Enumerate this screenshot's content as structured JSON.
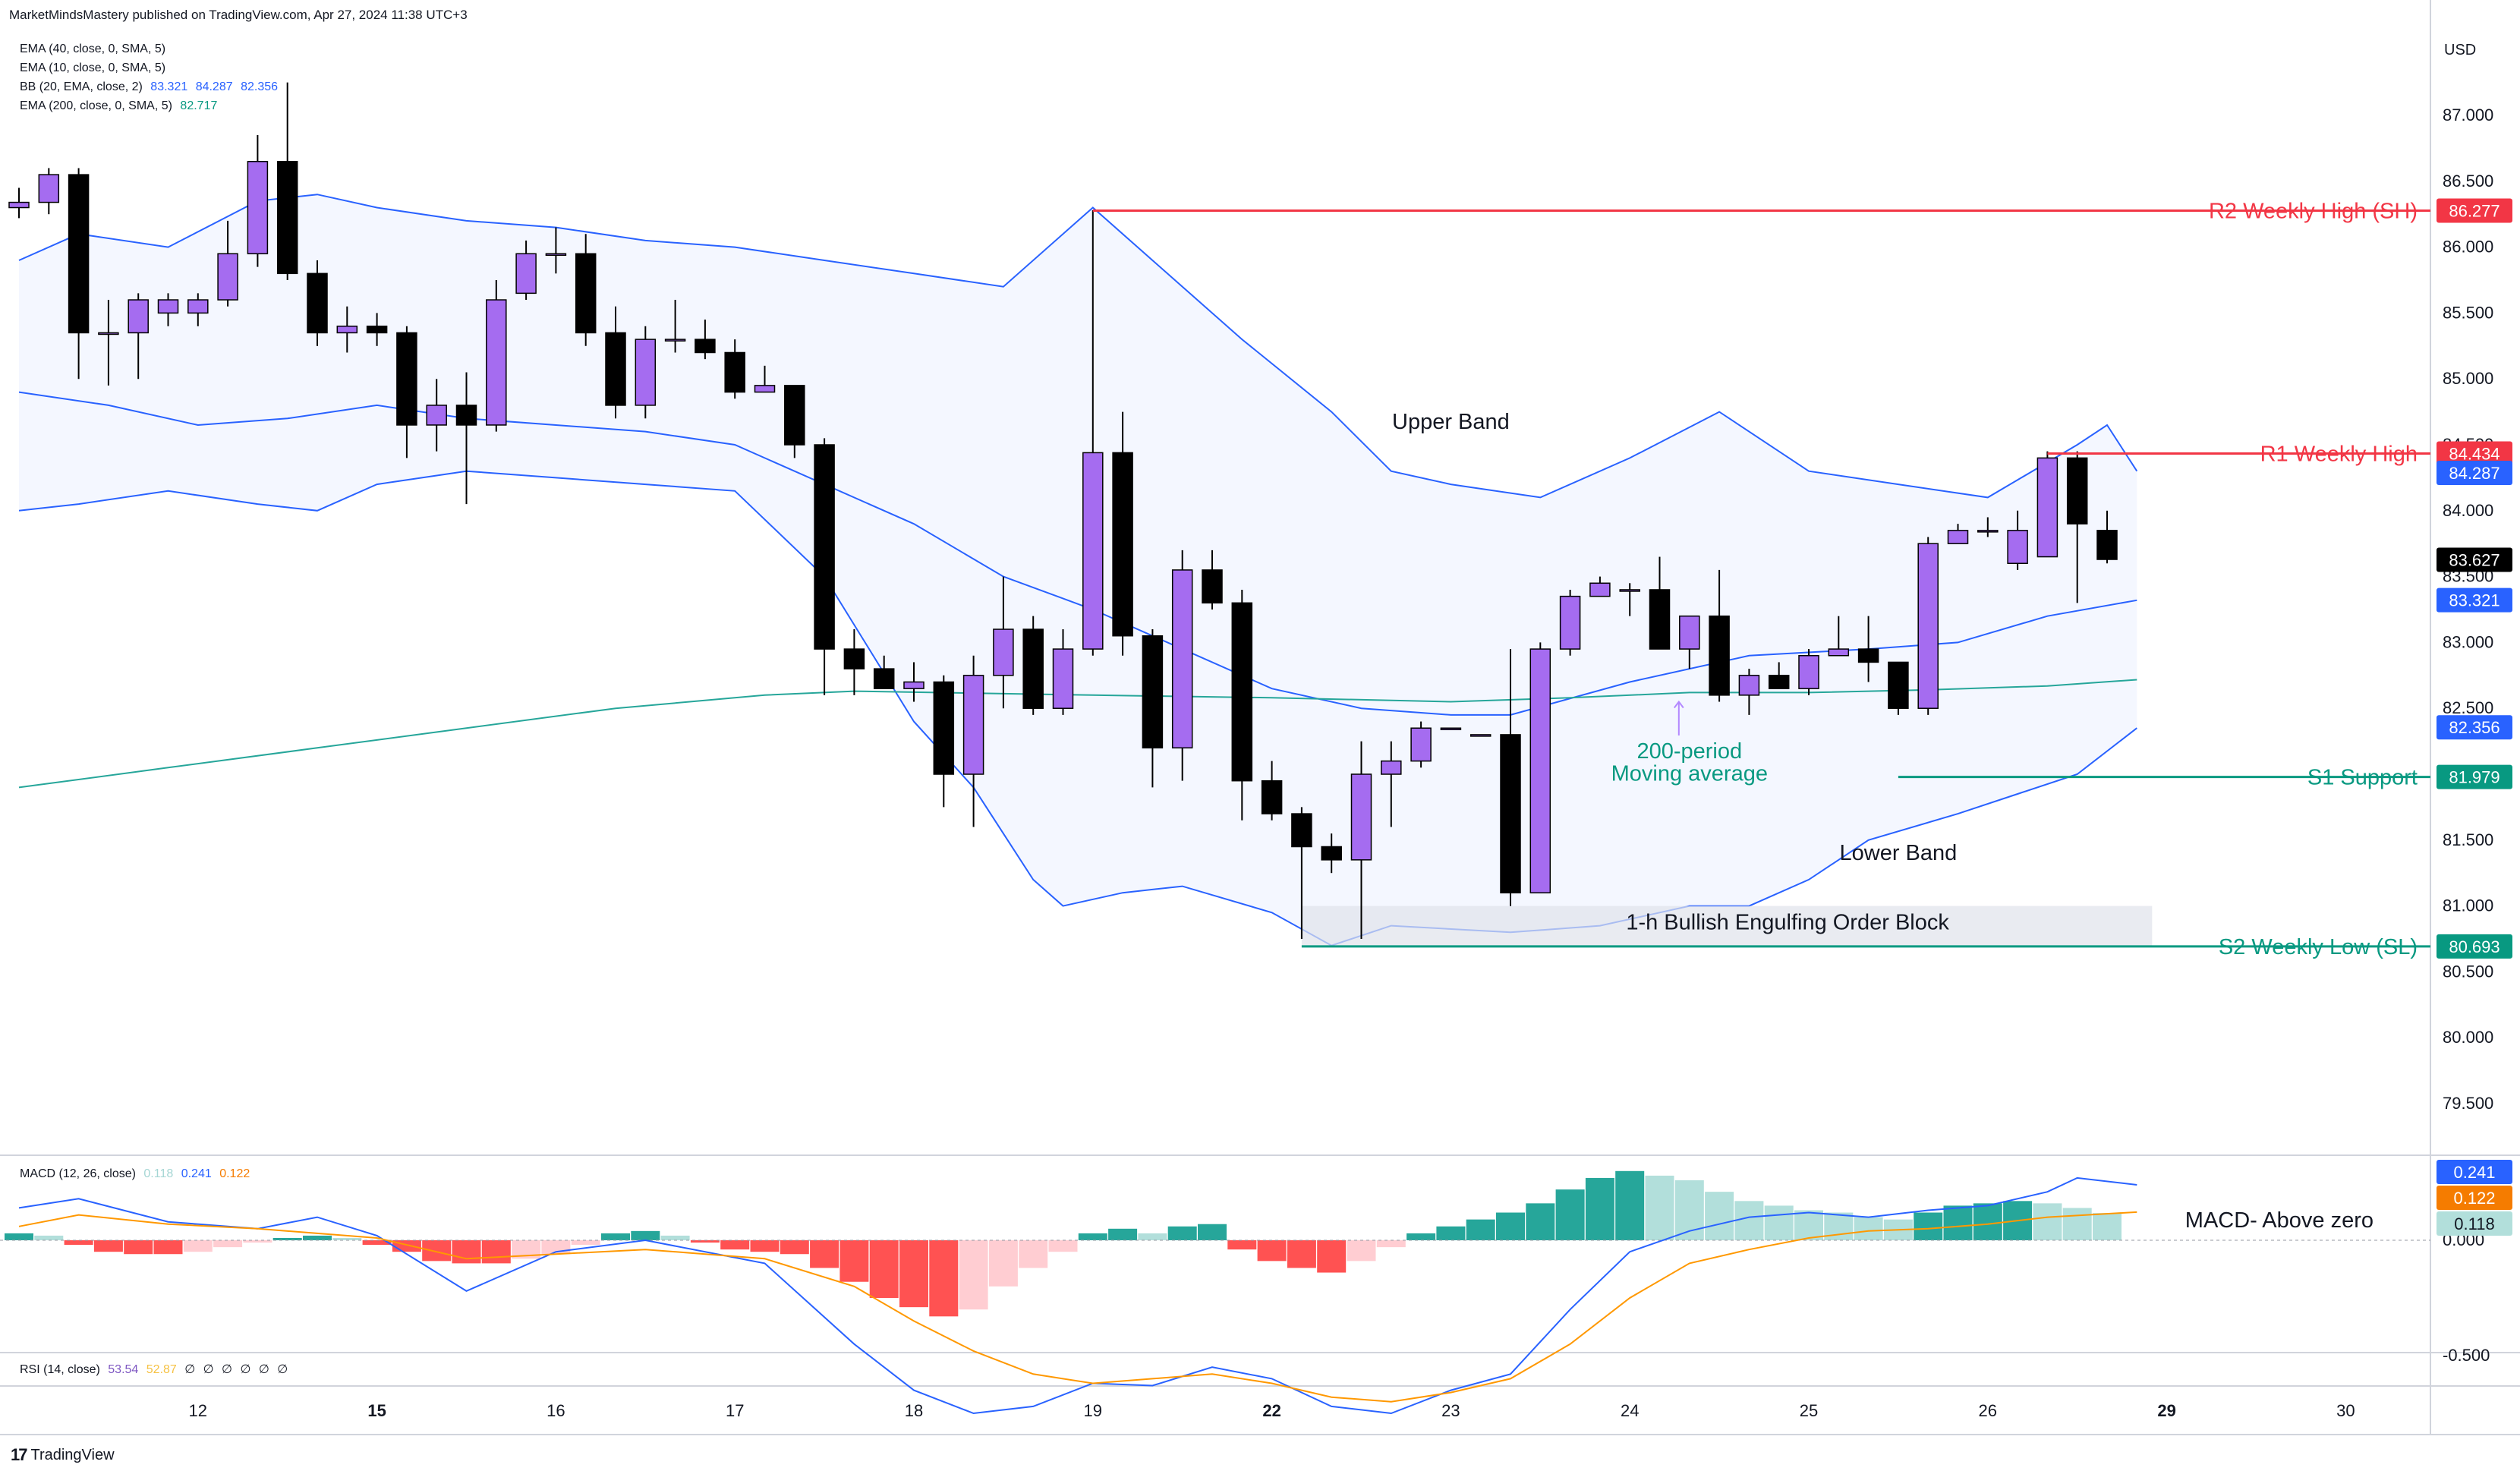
{
  "header": {
    "published": "MarketMindsMastery published on TradingView.com, Apr 27, 2024 11:38 UTC+3"
  },
  "legend": [
    {
      "label": "EMA (40, close, 0, SMA, 5)",
      "values": []
    },
    {
      "label": "EMA (10, close, 0, SMA, 5)",
      "values": []
    },
    {
      "label": "BB (20, EMA, close, 2)",
      "values": [
        "83.321",
        "84.287",
        "82.356"
      ],
      "color": "#2962ff"
    },
    {
      "label": "EMA (200, close, 0, SMA, 5)",
      "values": [
        "82.717"
      ],
      "color": "#089981"
    }
  ],
  "macd_legend": {
    "label": "MACD (12, 26, close)",
    "values": [
      "0.118",
      "0.241",
      "0.122"
    ],
    "colors": [
      "#a5d6d4",
      "#2962ff",
      "#f57c00"
    ]
  },
  "rsi_legend": {
    "label": "RSI (14, close)",
    "values": [
      "53.54",
      "52.87",
      "∅",
      "∅",
      "∅",
      "∅",
      "∅",
      "∅"
    ],
    "colors": [
      "#7e57c2",
      "#f6c244",
      "#131722",
      "#131722",
      "#131722",
      "#131722",
      "#131722",
      "#131722"
    ]
  },
  "currency": "USD",
  "footer": {
    "brand": "TradingView",
    "logo": "tv-logo-icon"
  },
  "colors": {
    "bull": "#a56cf0",
    "bear": "#000000",
    "bb": "#2962ff",
    "ema200": "#26a69a",
    "resistance": "#f23645",
    "support": "#089981",
    "macd_pos_strong": "#26a69a",
    "macd_pos_weak": "#b2dfdb",
    "macd_neg_strong": "#ff5252",
    "macd_neg_weak": "#ffcdd2",
    "macd_line": "#2962ff",
    "signal_line": "#ff9800"
  },
  "chart_data": {
    "type": "candlestick",
    "y_axis": {
      "range": [
        79.0,
        87.3
      ],
      "ticks": [
        "87.000",
        "86.500",
        "86.000",
        "85.500",
        "85.000",
        "84.500",
        "84.000",
        "83.500",
        "83.000",
        "82.500",
        "82.000",
        "81.500",
        "81.000",
        "80.500",
        "80.000",
        "79.500"
      ]
    },
    "x_axis": {
      "ticks": [
        {
          "label": "12",
          "bar": 6
        },
        {
          "label": "15",
          "bar": 12
        },
        {
          "label": "16",
          "bar": 18
        },
        {
          "label": "17",
          "bar": 24
        },
        {
          "label": "18",
          "bar": 30
        },
        {
          "label": "19",
          "bar": 36
        },
        {
          "label": "22",
          "bar": 42
        },
        {
          "label": "23",
          "bar": 48
        },
        {
          "label": "24",
          "bar": 54
        },
        {
          "label": "25",
          "bar": 60
        },
        {
          "label": "26",
          "bar": 66
        },
        {
          "label": "29",
          "bar": 72
        },
        {
          "label": "30",
          "bar": 78
        }
      ]
    },
    "bold_ticks": [
      "15",
      "22",
      "29"
    ],
    "candles": [
      [
        86.3,
        86.45,
        86.22,
        86.34
      ],
      [
        86.34,
        86.6,
        86.25,
        86.55
      ],
      [
        86.55,
        86.6,
        85.0,
        85.35
      ],
      [
        85.35,
        85.6,
        84.95,
        85.35
      ],
      [
        85.35,
        85.65,
        85.0,
        85.6
      ],
      [
        85.5,
        85.65,
        85.4,
        85.6
      ],
      [
        85.5,
        85.65,
        85.4,
        85.6
      ],
      [
        85.6,
        86.2,
        85.55,
        85.95
      ],
      [
        85.95,
        86.85,
        85.85,
        86.65
      ],
      [
        86.65,
        87.25,
        85.75,
        85.8
      ],
      [
        85.8,
        85.9,
        85.25,
        85.35
      ],
      [
        85.35,
        85.55,
        85.2,
        85.4
      ],
      [
        85.4,
        85.5,
        85.25,
        85.35
      ],
      [
        85.35,
        85.4,
        84.4,
        84.65
      ],
      [
        84.65,
        85.0,
        84.45,
        84.8
      ],
      [
        84.8,
        85.05,
        84.05,
        84.65
      ],
      [
        84.65,
        85.75,
        84.6,
        85.6
      ],
      [
        85.65,
        86.05,
        85.6,
        85.95
      ],
      [
        85.95,
        86.15,
        85.8,
        85.95
      ],
      [
        85.95,
        86.1,
        85.25,
        85.35
      ],
      [
        85.35,
        85.55,
        84.7,
        84.8
      ],
      [
        84.8,
        85.4,
        84.7,
        85.3
      ],
      [
        85.3,
        85.6,
        85.2,
        85.3
      ],
      [
        85.3,
        85.45,
        85.15,
        85.2
      ],
      [
        85.2,
        85.3,
        84.85,
        84.9
      ],
      [
        84.9,
        85.1,
        84.9,
        84.95
      ],
      [
        84.95,
        84.95,
        84.4,
        84.5
      ],
      [
        84.5,
        84.55,
        82.6,
        82.95
      ],
      [
        82.95,
        83.1,
        82.6,
        82.8
      ],
      [
        82.8,
        82.9,
        82.7,
        82.65
      ],
      [
        82.65,
        82.85,
        82.55,
        82.7
      ],
      [
        82.7,
        82.75,
        81.75,
        82.0
      ],
      [
        82.0,
        82.9,
        81.6,
        82.75
      ],
      [
        82.75,
        83.5,
        82.5,
        83.1
      ],
      [
        83.1,
        83.2,
        82.45,
        82.5
      ],
      [
        82.5,
        83.1,
        82.45,
        82.95
      ],
      [
        82.95,
        86.28,
        82.9,
        84.44
      ],
      [
        84.44,
        84.75,
        82.9,
        83.05
      ],
      [
        83.05,
        83.1,
        81.9,
        82.2
      ],
      [
        82.2,
        83.7,
        81.95,
        83.55
      ],
      [
        83.55,
        83.7,
        83.25,
        83.3
      ],
      [
        83.3,
        83.4,
        81.65,
        81.95
      ],
      [
        81.95,
        82.1,
        81.65,
        81.7
      ],
      [
        81.7,
        81.75,
        80.75,
        81.45
      ],
      [
        81.45,
        81.55,
        81.25,
        81.35
      ],
      [
        81.35,
        82.25,
        80.75,
        82.0
      ],
      [
        82.0,
        82.25,
        81.6,
        82.1
      ],
      [
        82.1,
        82.4,
        82.05,
        82.35
      ],
      [
        82.35,
        82.35,
        82.35,
        82.35
      ],
      [
        82.3,
        82.3,
        82.3,
        82.3
      ],
      [
        82.3,
        82.95,
        81.0,
        81.1
      ],
      [
        81.1,
        83.0,
        81.1,
        82.95
      ],
      [
        82.95,
        83.4,
        82.9,
        83.35
      ],
      [
        83.35,
        83.5,
        83.4,
        83.45
      ],
      [
        83.4,
        83.45,
        83.2,
        83.4
      ],
      [
        83.4,
        83.65,
        82.95,
        82.95
      ],
      [
        82.95,
        83.2,
        82.8,
        83.2
      ],
      [
        83.2,
        83.55,
        82.55,
        82.6
      ],
      [
        82.6,
        82.8,
        82.45,
        82.75
      ],
      [
        82.75,
        82.85,
        82.65,
        82.65
      ],
      [
        82.65,
        82.95,
        82.6,
        82.9
      ],
      [
        82.9,
        83.2,
        82.9,
        82.95
      ],
      [
        82.95,
        83.2,
        82.7,
        82.85
      ],
      [
        82.85,
        82.85,
        82.45,
        82.5
      ],
      [
        82.5,
        83.8,
        82.45,
        83.75
      ],
      [
        83.75,
        83.9,
        83.8,
        83.85
      ],
      [
        83.85,
        83.95,
        83.8,
        83.85
      ],
      [
        83.6,
        84.0,
        83.55,
        83.85
      ],
      [
        83.65,
        84.45,
        83.65,
        84.4
      ],
      [
        84.4,
        84.45,
        83.3,
        83.9
      ],
      [
        83.85,
        84.0,
        83.6,
        83.63
      ]
    ],
    "candle_format": "[open, high, low, close]",
    "bb_upper": [
      [
        0,
        85.9
      ],
      [
        2,
        86.1
      ],
      [
        5,
        86.0
      ],
      [
        8,
        86.35
      ],
      [
        10,
        86.4
      ],
      [
        12,
        86.3
      ],
      [
        15,
        86.2
      ],
      [
        18,
        86.15
      ],
      [
        21,
        86.05
      ],
      [
        24,
        86.0
      ],
      [
        27,
        85.9
      ],
      [
        30,
        85.8
      ],
      [
        33,
        85.7
      ],
      [
        36,
        86.3
      ],
      [
        38,
        85.9
      ],
      [
        41,
        85.3
      ],
      [
        44,
        84.75
      ],
      [
        46,
        84.3
      ],
      [
        48,
        84.2
      ],
      [
        51,
        84.1
      ],
      [
        54,
        84.4
      ],
      [
        57,
        84.75
      ],
      [
        60,
        84.3
      ],
      [
        63,
        84.2
      ],
      [
        66,
        84.1
      ],
      [
        69,
        84.5
      ],
      [
        70,
        84.65
      ],
      [
        71,
        84.3
      ]
    ],
    "bb_middle": [
      [
        0,
        84.9
      ],
      [
        3,
        84.8
      ],
      [
        6,
        84.65
      ],
      [
        9,
        84.7
      ],
      [
        12,
        84.8
      ],
      [
        15,
        84.7
      ],
      [
        18,
        84.65
      ],
      [
        21,
        84.6
      ],
      [
        24,
        84.5
      ],
      [
        27,
        84.2
      ],
      [
        30,
        83.9
      ],
      [
        33,
        83.5
      ],
      [
        36,
        83.25
      ],
      [
        39,
        82.95
      ],
      [
        42,
        82.65
      ],
      [
        45,
        82.5
      ],
      [
        48,
        82.45
      ],
      [
        50,
        82.45
      ],
      [
        54,
        82.7
      ],
      [
        58,
        82.9
      ],
      [
        62,
        82.95
      ],
      [
        65,
        83.0
      ],
      [
        68,
        83.2
      ],
      [
        71,
        83.32
      ]
    ],
    "bb_lower": [
      [
        0,
        84.0
      ],
      [
        2,
        84.05
      ],
      [
        5,
        84.15
      ],
      [
        8,
        84.05
      ],
      [
        10,
        84.0
      ],
      [
        12,
        84.2
      ],
      [
        15,
        84.3
      ],
      [
        18,
        84.25
      ],
      [
        21,
        84.2
      ],
      [
        24,
        84.15
      ],
      [
        27,
        83.5
      ],
      [
        30,
        82.4
      ],
      [
        32,
        81.9
      ],
      [
        34,
        81.2
      ],
      [
        35,
        81.0
      ],
      [
        37,
        81.1
      ],
      [
        39,
        81.15
      ],
      [
        42,
        80.95
      ],
      [
        44,
        80.7
      ],
      [
        46,
        80.85
      ],
      [
        50,
        80.8
      ],
      [
        53,
        80.85
      ],
      [
        55,
        80.95
      ],
      [
        56,
        81.0
      ],
      [
        58,
        81.0
      ],
      [
        60,
        81.2
      ],
      [
        62,
        81.5
      ],
      [
        65,
        81.7
      ],
      [
        67,
        81.85
      ],
      [
        69,
        82.0
      ],
      [
        71,
        82.35
      ]
    ],
    "ema200": [
      [
        0,
        81.9
      ],
      [
        5,
        82.05
      ],
      [
        10,
        82.2
      ],
      [
        15,
        82.35
      ],
      [
        20,
        82.5
      ],
      [
        25,
        82.6
      ],
      [
        28,
        82.63
      ],
      [
        36,
        82.6
      ],
      [
        42,
        82.58
      ],
      [
        48,
        82.55
      ],
      [
        52,
        82.58
      ],
      [
        56,
        82.62
      ],
      [
        60,
        82.62
      ],
      [
        64,
        82.64
      ],
      [
        68,
        82.67
      ],
      [
        71,
        82.717
      ]
    ],
    "levels": [
      {
        "name": "R2 Weekly High (SH)",
        "value": 86.277,
        "value_label": "86.277",
        "from_bar": 36,
        "color": "#f23645"
      },
      {
        "name": "R1 Weekly High",
        "value": 84.434,
        "value_label": "84.434",
        "from_bar": 68,
        "color": "#f23645"
      },
      {
        "name": "S1 Support",
        "value": 81.979,
        "value_label": "81.979",
        "from_bar": 63,
        "color": "#089981"
      },
      {
        "name": "S2 Weekly Low (SL)",
        "value": 80.693,
        "value_label": "80.693",
        "from_bar": 43,
        "color": "#089981"
      }
    ],
    "price_badges": [
      {
        "label": "84.287",
        "value": 84.287,
        "bg": "#2962ff",
        "fg": "#ffffff"
      },
      {
        "label": "83.627",
        "value": 83.627,
        "bg": "#000000",
        "fg": "#ffffff"
      },
      {
        "label": "83.321",
        "value": 83.321,
        "bg": "#2962ff",
        "fg": "#ffffff"
      },
      {
        "label": "82.356",
        "value": 82.356,
        "bg": "#2962ff",
        "fg": "#ffffff"
      }
    ],
    "order_block": {
      "label": "1-h Bullish Engulfing Order Block",
      "top": 81.0,
      "bottom": 80.693,
      "from_bar": 43,
      "to_bar": 71
    },
    "annotations": [
      {
        "text": "Upper Band",
        "bar": 48,
        "value": 84.62,
        "color": "#131722"
      },
      {
        "text": "Lower Band",
        "bar": 63,
        "value": 81.35,
        "color": "#131722"
      },
      {
        "text": "200-period",
        "bar": 56,
        "value": 82.12,
        "color": "#089981"
      },
      {
        "text": "Moving average",
        "bar": 56,
        "value": 81.95,
        "color": "#089981"
      }
    ],
    "macd": {
      "range": [
        -0.75,
        0.3
      ],
      "ticks": [
        "0.000",
        "-0.500"
      ],
      "histogram": [
        0.03,
        0.02,
        -0.02,
        -0.05,
        -0.06,
        -0.06,
        -0.05,
        -0.03,
        -0.01,
        0.01,
        0.02,
        0.01,
        -0.02,
        -0.05,
        -0.09,
        -0.1,
        -0.1,
        -0.08,
        -0.06,
        -0.02,
        0.03,
        0.04,
        0.02,
        -0.01,
        -0.04,
        -0.05,
        -0.06,
        -0.12,
        -0.18,
        -0.25,
        -0.29,
        -0.33,
        -0.3,
        -0.2,
        -0.12,
        -0.05,
        0.03,
        0.05,
        0.03,
        0.06,
        0.07,
        -0.04,
        -0.09,
        -0.12,
        -0.14,
        -0.09,
        -0.03,
        0.03,
        0.06,
        0.09,
        0.12,
        0.16,
        0.22,
        0.27,
        0.3,
        0.28,
        0.26,
        0.21,
        0.17,
        0.15,
        0.13,
        0.12,
        0.1,
        0.09,
        0.12,
        0.15,
        0.16,
        0.17,
        0.16,
        0.14,
        0.118
      ],
      "macd_line": [
        [
          0,
          0.14
        ],
        [
          2,
          0.18
        ],
        [
          5,
          0.08
        ],
        [
          8,
          0.05
        ],
        [
          10,
          0.1
        ],
        [
          12,
          0.02
        ],
        [
          15,
          -0.22
        ],
        [
          18,
          -0.05
        ],
        [
          21,
          0.0
        ],
        [
          25,
          -0.1
        ],
        [
          28,
          -0.45
        ],
        [
          30,
          -0.65
        ],
        [
          32,
          -0.75
        ],
        [
          34,
          -0.72
        ],
        [
          36,
          -0.62
        ],
        [
          38,
          -0.63
        ],
        [
          40,
          -0.55
        ],
        [
          42,
          -0.6
        ],
        [
          44,
          -0.72
        ],
        [
          46,
          -0.75
        ],
        [
          48,
          -0.65
        ],
        [
          50,
          -0.58
        ],
        [
          52,
          -0.3
        ],
        [
          54,
          -0.05
        ],
        [
          56,
          0.04
        ],
        [
          58,
          0.1
        ],
        [
          60,
          0.12
        ],
        [
          62,
          0.1
        ],
        [
          64,
          0.13
        ],
        [
          66,
          0.15
        ],
        [
          68,
          0.21
        ],
        [
          69,
          0.27
        ],
        [
          71,
          0.24
        ]
      ],
      "signal_line": [
        [
          0,
          0.06
        ],
        [
          2,
          0.11
        ],
        [
          5,
          0.07
        ],
        [
          8,
          0.05
        ],
        [
          10,
          0.03
        ],
        [
          12,
          0.01
        ],
        [
          15,
          -0.08
        ],
        [
          18,
          -0.06
        ],
        [
          21,
          -0.04
        ],
        [
          25,
          -0.08
        ],
        [
          28,
          -0.2
        ],
        [
          30,
          -0.35
        ],
        [
          32,
          -0.48
        ],
        [
          34,
          -0.58
        ],
        [
          36,
          -0.62
        ],
        [
          38,
          -0.6
        ],
        [
          40,
          -0.58
        ],
        [
          42,
          -0.62
        ],
        [
          44,
          -0.68
        ],
        [
          46,
          -0.7
        ],
        [
          48,
          -0.66
        ],
        [
          50,
          -0.6
        ],
        [
          52,
          -0.45
        ],
        [
          54,
          -0.25
        ],
        [
          56,
          -0.1
        ],
        [
          58,
          -0.04
        ],
        [
          60,
          0.01
        ],
        [
          62,
          0.04
        ],
        [
          64,
          0.05
        ],
        [
          66,
          0.07
        ],
        [
          68,
          0.1
        ],
        [
          71,
          0.122
        ]
      ],
      "badges": [
        {
          "label": "0.241",
          "value": 0.241,
          "bg": "#2962ff",
          "fg": "#ffffff"
        },
        {
          "label": "0.122",
          "value": 0.122,
          "bg": "#f57c00",
          "fg": "#ffffff"
        },
        {
          "label": "0.118",
          "value": 0.118,
          "bg": "#b2dfdb",
          "fg": "#131722"
        }
      ],
      "annotation": "MACD- Above zero"
    }
  }
}
